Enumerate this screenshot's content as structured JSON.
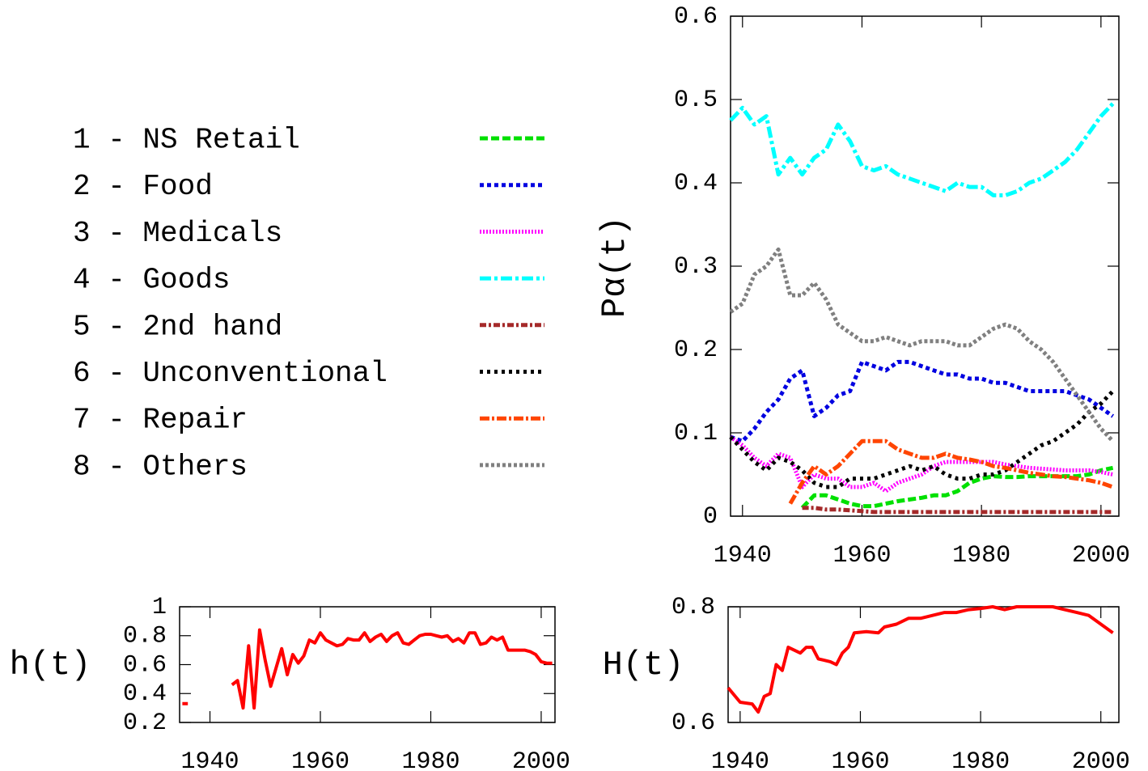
{
  "chart_data": [
    {
      "type": "line",
      "y_label": "Pα(t)",
      "x": [
        1938,
        1940,
        1942,
        1944,
        1946,
        1948,
        1950,
        1952,
        1954,
        1956,
        1958,
        1960,
        1962,
        1964,
        1966,
        1968,
        1970,
        1972,
        1974,
        1976,
        1978,
        1980,
        1982,
        1984,
        1986,
        1988,
        1990,
        1992,
        1994,
        1996,
        1998,
        2000,
        2002
      ],
      "xlim": [
        1938,
        2003
      ],
      "xticks": [
        1940,
        1960,
        1980,
        2000
      ],
      "ylim": [
        0,
        0.6
      ],
      "yticks": [
        0,
        0.1,
        0.2,
        0.3,
        0.4,
        0.5,
        0.6
      ],
      "series": [
        {
          "name": "1 - NS Retail",
          "color": "#00e000",
          "dash": "10 4",
          "values": [
            null,
            null,
            null,
            null,
            null,
            null,
            0.01,
            0.025,
            0.025,
            0.02,
            0.015,
            0.012,
            0.012,
            0.015,
            0.018,
            0.02,
            0.022,
            0.025,
            0.025,
            0.03,
            0.04,
            0.045,
            0.048,
            0.047,
            0.047,
            0.048,
            0.048,
            0.048,
            0.048,
            0.048,
            0.05,
            0.055,
            0.058
          ]
        },
        {
          "name": "2 - Food",
          "color": "#0000e0",
          "dash": "5 4",
          "values": [
            0.095,
            0.09,
            0.105,
            0.125,
            0.14,
            0.165,
            0.175,
            0.12,
            0.13,
            0.145,
            0.15,
            0.185,
            0.18,
            0.175,
            0.185,
            0.185,
            0.18,
            0.175,
            0.17,
            0.17,
            0.165,
            0.165,
            0.16,
            0.16,
            0.155,
            0.15,
            0.15,
            0.15,
            0.15,
            0.145,
            0.14,
            0.13,
            0.12
          ]
        },
        {
          "name": "3 - Medicals",
          "color": "#ff00ff",
          "dash": "2 2",
          "values": [
            0.095,
            0.085,
            0.07,
            0.06,
            0.075,
            0.07,
            0.035,
            0.05,
            0.045,
            0.045,
            0.035,
            0.035,
            0.04,
            0.03,
            0.04,
            0.045,
            0.05,
            0.06,
            0.065,
            0.065,
            0.065,
            0.065,
            0.065,
            0.062,
            0.06,
            0.058,
            0.057,
            0.056,
            0.055,
            0.055,
            0.055,
            0.053,
            0.05
          ]
        },
        {
          "name": "4 - Goods",
          "color": "#00ffff",
          "dash": "14 4 4 4",
          "values": [
            0.475,
            0.49,
            0.47,
            0.48,
            0.41,
            0.43,
            0.41,
            0.43,
            0.44,
            0.47,
            0.45,
            0.42,
            0.415,
            0.42,
            0.41,
            0.405,
            0.4,
            0.395,
            0.39,
            0.4,
            0.395,
            0.395,
            0.385,
            0.385,
            0.39,
            0.4,
            0.405,
            0.415,
            0.425,
            0.44,
            0.46,
            0.48,
            0.495
          ]
        },
        {
          "name": "5 - 2nd hand",
          "color": "#a52a2a",
          "dash": "8 3 3 3",
          "values": [
            null,
            null,
            null,
            null,
            null,
            null,
            0.01,
            0.01,
            0.008,
            0.008,
            0.007,
            0.006,
            0.005,
            0.005,
            0.005,
            0.005,
            0.005,
            0.005,
            0.005,
            0.005,
            0.005,
            0.005,
            0.005,
            0.005,
            0.005,
            0.005,
            0.005,
            0.005,
            0.005,
            0.005,
            0.005,
            0.005,
            0.005
          ]
        },
        {
          "name": "6 - Unconventional",
          "color": "#000000",
          "dash": "4 5",
          "values": [
            0.095,
            0.08,
            0.065,
            0.055,
            0.07,
            0.065,
            0.055,
            0.04,
            0.035,
            0.035,
            0.045,
            0.045,
            0.045,
            0.05,
            0.055,
            0.06,
            0.055,
            0.06,
            0.05,
            0.045,
            0.045,
            0.05,
            0.05,
            0.055,
            0.065,
            0.075,
            0.085,
            0.09,
            0.1,
            0.11,
            0.125,
            0.135,
            0.15
          ]
        },
        {
          "name": "7 - Repair",
          "color": "#ff4500",
          "dash": "12 3 3 3",
          "values": [
            null,
            null,
            null,
            null,
            null,
            0.015,
            0.04,
            0.06,
            0.05,
            0.06,
            0.075,
            0.09,
            0.09,
            0.09,
            0.08,
            0.075,
            0.07,
            0.07,
            0.075,
            0.07,
            0.068,
            0.065,
            0.06,
            0.058,
            0.055,
            0.052,
            0.05,
            0.048,
            0.047,
            0.045,
            0.043,
            0.04,
            0.035
          ]
        },
        {
          "name": "8 - Others",
          "color": "#808080",
          "dash": "4 3",
          "values": [
            0.245,
            0.255,
            0.29,
            0.3,
            0.32,
            0.265,
            0.265,
            0.28,
            0.26,
            0.23,
            0.22,
            0.21,
            0.21,
            0.215,
            0.21,
            0.205,
            0.21,
            0.21,
            0.21,
            0.205,
            0.205,
            0.215,
            0.225,
            0.23,
            0.225,
            0.21,
            0.2,
            0.185,
            0.165,
            0.145,
            0.125,
            0.105,
            0.09
          ]
        }
      ]
    },
    {
      "type": "line",
      "y_label": "h(t)",
      "x": [
        1935,
        1936,
        1937,
        1938,
        1939,
        1940,
        1941,
        1942,
        1943,
        1944,
        1945,
        1946,
        1947,
        1948,
        1949,
        1950,
        1951,
        1952,
        1953,
        1954,
        1955,
        1956,
        1957,
        1958,
        1959,
        1960,
        1961,
        1962,
        1963,
        1964,
        1965,
        1966,
        1967,
        1968,
        1969,
        1970,
        1971,
        1972,
        1973,
        1974,
        1975,
        1976,
        1977,
        1978,
        1979,
        1980,
        1981,
        1982,
        1983,
        1984,
        1985,
        1986,
        1987,
        1988,
        1989,
        1990,
        1991,
        1992,
        1993,
        1994,
        1995,
        1996,
        1997,
        1998,
        1999,
        2000,
        2001,
        2002
      ],
      "xlim": [
        1934.5,
        2002.5
      ],
      "xticks": [
        1940,
        1960,
        1980,
        2000
      ],
      "ylim": [
        0.2,
        1
      ],
      "yticks": [
        0.2,
        0.4,
        0.6,
        0.8,
        1
      ],
      "series": [
        {
          "color": "#ff0000",
          "values": [
            0.33,
            0.33,
            null,
            null,
            null,
            null,
            null,
            null,
            null,
            0.46,
            0.49,
            0.3,
            0.73,
            0.3,
            0.84,
            0.63,
            0.45,
            0.58,
            0.71,
            0.53,
            0.67,
            0.61,
            0.66,
            0.77,
            0.75,
            0.82,
            0.77,
            0.75,
            0.73,
            0.74,
            0.78,
            0.77,
            0.77,
            0.82,
            0.76,
            0.79,
            0.81,
            0.76,
            0.8,
            0.82,
            0.75,
            0.74,
            0.77,
            0.8,
            0.81,
            0.81,
            0.8,
            0.79,
            0.8,
            0.76,
            0.78,
            0.75,
            0.82,
            0.82,
            0.74,
            0.75,
            0.79,
            0.77,
            0.79,
            0.7,
            0.7,
            0.7,
            0.7,
            0.69,
            0.67,
            0.62,
            0.61,
            0.61
          ]
        }
      ]
    },
    {
      "type": "line",
      "y_label": "H(t)",
      "x": [
        1938,
        1940,
        1942,
        1943,
        1944,
        1945,
        1946,
        1947,
        1948,
        1950,
        1951,
        1952,
        1953,
        1955,
        1956,
        1957,
        1958,
        1959,
        1961,
        1963,
        1964,
        1966,
        1968,
        1970,
        1972,
        1974,
        1976,
        1978,
        1980,
        1982,
        1984,
        1986,
        1988,
        1990,
        1992,
        1994,
        1996,
        1998,
        2000,
        2002
      ],
      "xlim": [
        1938,
        2003
      ],
      "xticks": [
        1940,
        1960,
        1980,
        2000
      ],
      "ylim": [
        0.6,
        0.8
      ],
      "yticks": [
        0.6,
        0.8
      ],
      "series": [
        {
          "color": "#ff0000",
          "values": [
            0.66,
            0.635,
            0.632,
            0.618,
            0.645,
            0.65,
            0.7,
            0.69,
            0.73,
            0.72,
            0.73,
            0.73,
            0.71,
            0.705,
            0.7,
            0.72,
            0.73,
            0.755,
            0.757,
            0.755,
            0.765,
            0.77,
            0.78,
            0.78,
            0.785,
            0.79,
            0.79,
            0.795,
            0.797,
            0.8,
            0.795,
            0.8,
            0.8,
            0.8,
            0.8,
            0.795,
            0.79,
            0.785,
            0.77,
            0.755
          ]
        }
      ]
    }
  ]
}
